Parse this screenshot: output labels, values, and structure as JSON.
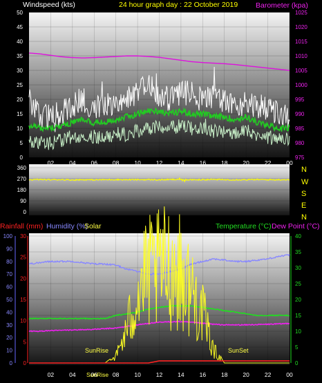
{
  "header": {
    "wind_label": "Windspeed (kts)",
    "title": "24 hour graph day : 22 October 2019",
    "baro_label": "Barometer (kpa)"
  },
  "middle": {
    "compass": [
      "N",
      "W",
      "S",
      "E",
      "N"
    ]
  },
  "bottom_header": {
    "rain_label": "Rainfall (mm)",
    "humidity_label": "Humidity (%)",
    "solar_label": "Solar",
    "temp_label": "Temperature (°C)",
    "dew_label": "Dew Point (°C)"
  },
  "colors": {
    "wind_max": "#ffffff",
    "wind_avg": "#22cc22",
    "wind_low": "#c8f0c8",
    "barometer": "#dd11dd",
    "direction": "#ffff00",
    "rain": "#ff2222",
    "humidity": "#8888ff",
    "solar": "#ffff22",
    "temp": "#22dd22",
    "dew": "#ee22ee"
  },
  "chart_data": [
    {
      "type": "line",
      "x_ticks": [
        "02",
        "04",
        "06",
        "08",
        "10",
        "12",
        "14",
        "16",
        "18",
        "20",
        "22",
        "00"
      ],
      "left_axis": {
        "ticks": [
          "0",
          "5",
          "10",
          "15",
          "20",
          "25",
          "30",
          "35",
          "40",
          "45",
          "50"
        ],
        "ylim": [
          0,
          50
        ]
      },
      "right_axis": {
        "ticks": [
          "975",
          "980",
          "985",
          "990",
          "995",
          "1000",
          "1005",
          "1010",
          "1015",
          "1020",
          "1025"
        ],
        "ylim": [
          975,
          1025
        ]
      },
      "series": [
        {
          "name": "Windspeed (kts)",
          "values_hourly": [
            20,
            15,
            14,
            15,
            18,
            20,
            17,
            19,
            19,
            21,
            22,
            25,
            21,
            20,
            22,
            22,
            20,
            21,
            19,
            18,
            19,
            18,
            16,
            15,
            14
          ]
        },
        {
          "name": "Windspeed (kts)",
          "values_hourly": [
            11,
            10,
            10,
            11,
            12,
            13,
            12,
            12,
            13,
            14,
            15,
            16,
            16,
            15,
            16,
            15,
            15,
            14,
            14,
            13,
            14,
            12,
            11,
            10,
            10
          ]
        },
        {
          "name": "Windspeed (kts)",
          "values_hourly": [
            6,
            5,
            5,
            6,
            7,
            8,
            7,
            7,
            8,
            8,
            9,
            10,
            11,
            10,
            11,
            10,
            10,
            9,
            9,
            8,
            9,
            8,
            7,
            6,
            6
          ]
        },
        {
          "name": "Barometer (kpa)",
          "values_hourly": [
            1011,
            1010.7,
            1010.2,
            1009.7,
            1009.4,
            1009.3,
            1009.4,
            1009.6,
            1009.8,
            1010,
            1010,
            1009.8,
            1009.5,
            1009,
            1008.5,
            1008,
            1007.7,
            1007.5,
            1007.3,
            1007,
            1006.6,
            1006.2,
            1005.8,
            1005.4,
            1005
          ]
        }
      ]
    },
    {
      "type": "line",
      "left_axis": {
        "ticks": [
          "0",
          "90",
          "180",
          "270",
          "360"
        ],
        "ylim": [
          0,
          360
        ]
      },
      "series": [
        {
          "name": "Direction",
          "values_hourly": [
            262,
            264,
            262,
            263,
            260,
            262,
            261,
            262,
            263,
            262,
            262,
            263,
            261,
            264,
            263,
            262,
            263,
            264,
            262,
            262,
            262,
            263,
            262,
            262,
            263
          ]
        }
      ]
    },
    {
      "type": "line",
      "x_ticks": [
        "02",
        "04",
        "06",
        "08",
        "10",
        "12",
        "14",
        "16",
        "18",
        "20",
        "22",
        "00"
      ],
      "sun_labels": [
        "SunRise",
        "SunSet"
      ],
      "axis_label": "SunRise",
      "humidity_axis": {
        "ticks": [
          "0",
          "10",
          "20",
          "30",
          "40",
          "50",
          "60",
          "70",
          "80",
          "90",
          "100"
        ],
        "ylim": [
          0,
          100
        ]
      },
      "rain_axis": {
        "ticks": [
          "0",
          "5",
          "10",
          "15",
          "20",
          "25",
          "30"
        ],
        "ylim": [
          0,
          30
        ]
      },
      "temp_axis": {
        "ticks": [
          "0",
          "5",
          "10",
          "15",
          "20",
          "25",
          "30",
          "35",
          "40"
        ],
        "ylim": [
          0,
          40
        ]
      },
      "series": [
        {
          "name": "Humidity (%)",
          "values_hourly": [
            78,
            79,
            80,
            80,
            80,
            79,
            78,
            78,
            77,
            74,
            72,
            70,
            70,
            72,
            74,
            78,
            80,
            82,
            81,
            80,
            80,
            81,
            82,
            84,
            85
          ]
        },
        {
          "name": "Temperature (°C)",
          "values_hourly": [
            14,
            14,
            14,
            14,
            14,
            14,
            14,
            14,
            15,
            15.5,
            16,
            17,
            17.5,
            18,
            18,
            18,
            17.5,
            17,
            16.5,
            16,
            15.5,
            15,
            15,
            15,
            15
          ]
        },
        {
          "name": "Dew Point (°C)",
          "values_hourly": [
            10,
            10,
            10.2,
            10.3,
            10.4,
            10.5,
            10.6,
            10.8,
            11,
            11.5,
            12,
            12.5,
            12.8,
            13,
            13,
            12.8,
            12.5,
            12.2,
            12,
            12,
            12,
            12.1,
            12.2,
            12.3,
            12.5
          ]
        },
        {
          "name": "Solar",
          "values_hourly": [
            0,
            0,
            0,
            0,
            0,
            0,
            0,
            0,
            2,
            10,
            22,
            27,
            28,
            30,
            27,
            22,
            15,
            4,
            0,
            0,
            0,
            0,
            0,
            0,
            0
          ]
        },
        {
          "name": "Rainfall (mm)",
          "values_hourly": [
            0,
            0,
            0,
            0,
            0,
            0,
            0,
            0,
            0,
            0,
            0,
            0,
            0.5,
            0.5,
            0.5,
            0.5,
            0.5,
            0.5,
            0.5,
            0.5,
            0.5,
            0.5,
            0.5,
            0.5,
            0.5
          ]
        }
      ]
    }
  ]
}
